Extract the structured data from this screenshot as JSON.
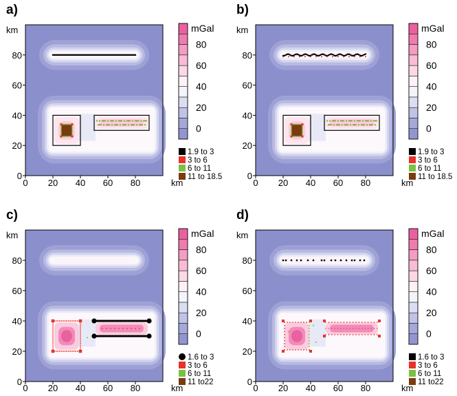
{
  "figure": {
    "panels": [
      {
        "id": "a",
        "label": "a)",
        "legend_marker": "square",
        "legend": [
          "1.9 to 3",
          "3 to 6",
          "6 to 11",
          "11 to 18.5"
        ],
        "outlines": true,
        "center_highlight": false,
        "solution_style": "clustered"
      },
      {
        "id": "b",
        "label": "b)",
        "legend_marker": "square",
        "legend": [
          "1.9 to 3",
          "3 to 6",
          "6 to 11",
          "11 to 18.5"
        ],
        "outlines": true,
        "center_highlight": false,
        "solution_style": "clustered-wide"
      },
      {
        "id": "c",
        "label": "c)",
        "legend_marker": "circle",
        "legend": [
          "1.6 to 3",
          "3 to 6",
          "6 to 11",
          "11 to22"
        ],
        "outlines": false,
        "center_highlight": true,
        "solution_style": "edges"
      },
      {
        "id": "d",
        "label": "d)",
        "legend_marker": "square",
        "legend": [
          "1.6 to 3",
          "3 to 6",
          "6 to 11",
          "11 to22"
        ],
        "outlines": false,
        "center_highlight": true,
        "solution_style": "scattered"
      }
    ]
  },
  "chart_data": {
    "type": "heatmap",
    "panel_count": 4,
    "x_unit": "km",
    "y_unit": "km",
    "xlim": [
      0,
      100
    ],
    "ylim": [
      0,
      100
    ],
    "xticks": [
      0,
      20,
      40,
      60,
      80
    ],
    "yticks": [
      0,
      20,
      40,
      60,
      80
    ],
    "colorbar": {
      "unit": "mGal",
      "ticks": [
        0,
        20,
        40,
        60,
        80
      ],
      "range": [
        -10,
        100
      ],
      "step": 10
    },
    "bodies": [
      {
        "kind": "square",
        "x": [
          20,
          40
        ],
        "y": [
          20,
          40
        ]
      },
      {
        "kind": "prism",
        "x": [
          50,
          90
        ],
        "y": [
          30,
          40
        ]
      },
      {
        "kind": "line",
        "x": [
          20,
          80
        ],
        "y": [
          80,
          80
        ]
      }
    ],
    "colors": {
      "background": "#8b8fcb",
      "legend": [
        "#000000",
        "#e8322a",
        "#7bc043",
        "#7a3b10"
      ]
    }
  }
}
